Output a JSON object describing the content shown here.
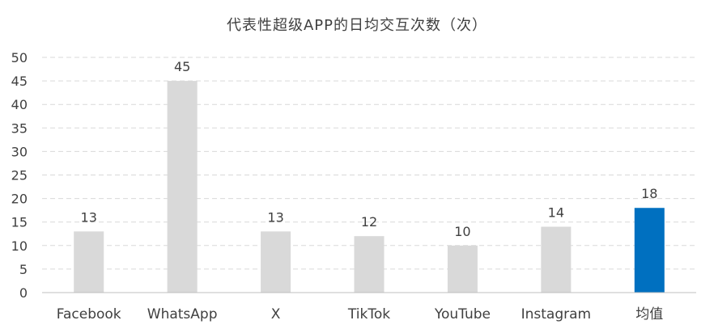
{
  "chart_data": {
    "type": "bar",
    "title": "代表性超级APP的日均交互次数（次）",
    "categories": [
      "Facebook",
      "WhatsApp",
      "X",
      "TikTok",
      "YouTube",
      "Instagram",
      "均值"
    ],
    "values": [
      13,
      45,
      13,
      12,
      10,
      14,
      18
    ],
    "data_labels": [
      "13",
      "45",
      "13",
      "12",
      "10",
      "14",
      "18"
    ],
    "ylim": [
      0,
      50
    ],
    "yticks": [
      0,
      5,
      10,
      15,
      20,
      25,
      30,
      35,
      40,
      45,
      50
    ],
    "ytick_labels": [
      "0",
      "5",
      "10",
      "15",
      "20",
      "25",
      "30",
      "35",
      "40",
      "45",
      "50"
    ],
    "grid": true,
    "legend": "none",
    "colors": {
      "bar_default": "#d9d9d9",
      "bar_highlight": "#0070c0",
      "highlight_category": "均值"
    }
  }
}
